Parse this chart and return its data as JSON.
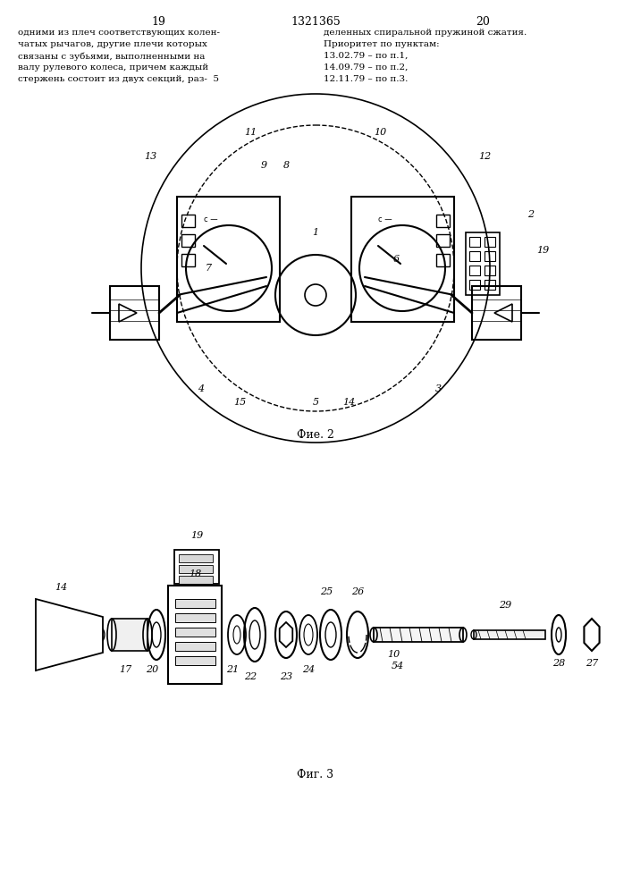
{
  "page_width": 7.07,
  "page_height": 10.0,
  "bg_color": "#ffffff",
  "header_left_num": "19",
  "header_center_num": "1321365",
  "header_right_num": "20",
  "left_text": [
    "одними из плеч соответствующих колен-",
    "чатых рычагов, другие плечи которых",
    "связаны с зубьями, выполненными на",
    "валу рулевого колеса, причем каждый",
    "стержень состоит из двух секций, раз-  5"
  ],
  "right_text": [
    "деленных спиральной пружиной сжатия.",
    "Приоритет по пунктам:",
    "13.02.79 – по п.1,",
    "14.09.79 – по п.2,",
    "12.11.79 – по п.3."
  ],
  "fig2_caption": "Фие. 2",
  "fig3_caption": "Фиг. 3",
  "line_color": "#000000",
  "text_color": "#000000"
}
